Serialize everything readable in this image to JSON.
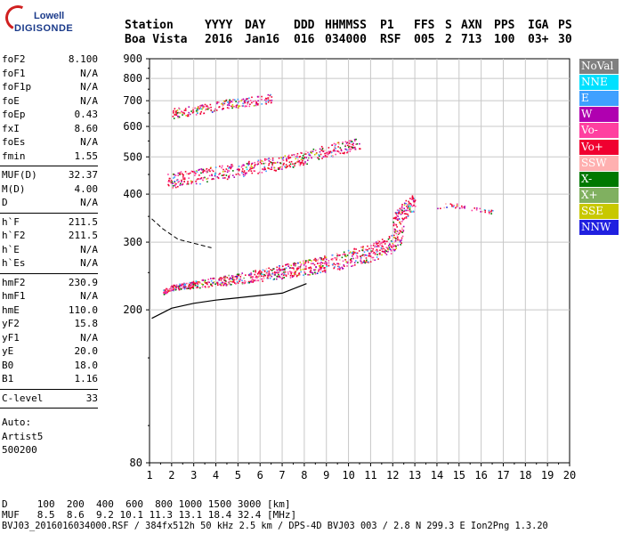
{
  "logo": {
    "line1": "Lowell",
    "line2": "DIGISONDE"
  },
  "header": {
    "labels": [
      "Station",
      "YYYY",
      "DAY",
      "DDD",
      "HHMMSS",
      "P1",
      "FFS",
      "S",
      "AXN",
      "PPS",
      "IGA",
      "PS"
    ],
    "values": [
      "Boa Vista",
      "2016",
      "Jan16",
      "016",
      "034000",
      "RSF",
      "005",
      "2",
      "713",
      "100",
      "03+",
      "30"
    ]
  },
  "params": {
    "group1": [
      {
        "label": "foF2",
        "value": "8.100"
      },
      {
        "label": "foF1",
        "value": "N/A"
      },
      {
        "label": "foF1p",
        "value": "N/A"
      },
      {
        "label": "foE",
        "value": "N/A"
      },
      {
        "label": "foEp",
        "value": "0.43"
      },
      {
        "label": "fxI",
        "value": "8.60"
      },
      {
        "label": "foEs",
        "value": "N/A"
      },
      {
        "label": "fmin",
        "value": "1.55"
      }
    ],
    "group2": [
      {
        "label": "MUF(D)",
        "value": "32.37"
      },
      {
        "label": "M(D)",
        "value": "4.00"
      },
      {
        "label": "D",
        "value": "N/A"
      }
    ],
    "group3": [
      {
        "label": "h`F",
        "value": "211.5"
      },
      {
        "label": "h`F2",
        "value": "211.5"
      },
      {
        "label": "h`E",
        "value": "N/A"
      },
      {
        "label": "h`Es",
        "value": "N/A"
      }
    ],
    "group4": [
      {
        "label": "hmF2",
        "value": "230.9"
      },
      {
        "label": "hmF1",
        "value": "N/A"
      },
      {
        "label": "hmE",
        "value": "110.0"
      },
      {
        "label": "yF2",
        "value": "15.8"
      },
      {
        "label": "yF1",
        "value": "N/A"
      },
      {
        "label": "yE",
        "value": "20.0"
      },
      {
        "label": "B0",
        "value": "18.0"
      },
      {
        "label": "B1",
        "value": "1.16"
      }
    ],
    "group5": [
      {
        "label": "C-level",
        "value": "33"
      }
    ],
    "auto": [
      "Auto:",
      "Artist5",
      "500200"
    ]
  },
  "legend": [
    {
      "label": "NoVal",
      "bg": "#808080",
      "fg": "#ffffff"
    },
    {
      "label": "NNE",
      "bg": "#00e0ff",
      "fg": "#ffffff"
    },
    {
      "label": "E",
      "bg": "#3fa0ff",
      "fg": "#ffffff"
    },
    {
      "label": "W",
      "bg": "#b000b0",
      "fg": "#ffffff"
    },
    {
      "label": "Vo-",
      "bg": "#ff40a0",
      "fg": "#ffffff"
    },
    {
      "label": "Vo+",
      "bg": "#f00030",
      "fg": "#ffffff"
    },
    {
      "label": "SSW",
      "bg": "#ffb0b0",
      "fg": "#ffffff"
    },
    {
      "label": "X-",
      "bg": "#007800",
      "fg": "#ffffff"
    },
    {
      "label": "X+",
      "bg": "#80b060",
      "fg": "#ffffff"
    },
    {
      "label": "SSE",
      "bg": "#c8c800",
      "fg": "#ffffff"
    },
    {
      "label": "NNW",
      "bg": "#2020e0",
      "fg": "#ffffff"
    }
  ],
  "chart_data": {
    "type": "scatter",
    "xlim": [
      1,
      20
    ],
    "ylim": [
      80,
      900
    ],
    "x_ticks": [
      1,
      2,
      3,
      4,
      5,
      6,
      7,
      8,
      9,
      10,
      11,
      12,
      13,
      14,
      15,
      16,
      17,
      18,
      19,
      20
    ],
    "y_ticks": [
      80,
      200,
      300,
      400,
      500,
      600,
      700,
      800,
      900
    ],
    "y_scale": "log",
    "grid": true,
    "traces": [
      {
        "name": "F2 o-trace",
        "x": [
          1.6,
          2,
          3,
          4,
          5,
          6,
          7,
          8,
          9,
          10,
          11,
          12,
          12.5
        ],
        "y": [
          222,
          228,
          232,
          236,
          240,
          245,
          250,
          256,
          262,
          270,
          280,
          295,
          315
        ]
      },
      {
        "name": "F2 x-trace",
        "x": [
          12,
          12.5,
          13
        ],
        "y": [
          330,
          360,
          380
        ]
      },
      {
        "name": "2F",
        "x": [
          1.8,
          3,
          4,
          5,
          6,
          7,
          8,
          9,
          10,
          10.5
        ],
        "y": [
          430,
          440,
          450,
          460,
          470,
          480,
          495,
          515,
          530,
          540
        ]
      },
      {
        "name": "3F",
        "x": [
          2,
          3,
          4,
          5,
          6,
          6.5
        ],
        "y": [
          645,
          660,
          675,
          690,
          700,
          710
        ]
      },
      {
        "name": "scatter",
        "x": [
          14,
          14.5,
          15,
          15.5,
          16,
          16.5
        ],
        "y": [
          370,
          375,
          372,
          368,
          364,
          360
        ]
      }
    ],
    "profile": {
      "x": [
        1.1,
        2,
        3,
        4,
        5,
        6,
        7,
        8.1,
        7.6
      ],
      "y": [
        190,
        202,
        208,
        212,
        215,
        218,
        221,
        234,
        228
      ]
    }
  },
  "bottom": {
    "line1": "D     100  200  400  600  800 1000 1500 3000 [km]",
    "line2": "MUF   8.5  8.6  9.2 10.1 11.3 13.1 18.4 32.4 [MHz]",
    "line3": "BVJ03_2016016034000.RSF / 384fx512h 50 kHz 2.5 km / DPS-4D BVJ03 003 / 2.8 N 299.3 E Ion2Png 1.3.20"
  }
}
